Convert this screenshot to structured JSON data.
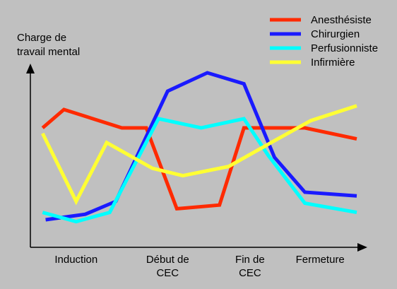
{
  "chart_data": {
    "type": "line",
    "title": "",
    "xlabel": "",
    "ylabel": [
      "Charge de",
      "travail mental"
    ],
    "grid": false,
    "legend_position": "top-right",
    "ylim": [
      0,
      10
    ],
    "x_ticks": [
      {
        "lines": [
          "Induction"
        ],
        "x": 1.5
      },
      {
        "lines": [
          "Début de",
          "CEC"
        ],
        "x": 4.5
      },
      {
        "lines": [
          "Fin de",
          "CEC"
        ],
        "x": 7.2
      },
      {
        "lines": [
          "Fermeture"
        ],
        "x": 9.5
      }
    ],
    "xlim": [
      0,
      11
    ],
    "series": [
      {
        "name": "Anesthésiste",
        "color": "#ff2a00",
        "points": [
          [
            0.4,
            6.5
          ],
          [
            1.1,
            7.5
          ],
          [
            3.0,
            6.5
          ],
          [
            3.8,
            6.5
          ],
          [
            4.8,
            2.1
          ],
          [
            6.2,
            2.3
          ],
          [
            7.0,
            6.5
          ],
          [
            9.0,
            6.5
          ],
          [
            10.7,
            5.9
          ]
        ]
      },
      {
        "name": "Chirurgien",
        "color": "#1a1aff",
        "points": [
          [
            0.5,
            1.5
          ],
          [
            1.8,
            1.8
          ],
          [
            2.8,
            2.5
          ],
          [
            4.5,
            8.5
          ],
          [
            5.8,
            9.5
          ],
          [
            7.0,
            8.9
          ],
          [
            8.0,
            4.9
          ],
          [
            9.0,
            3.0
          ],
          [
            10.7,
            2.8
          ]
        ]
      },
      {
        "name": "Perfusionniste",
        "color": "#00ffff",
        "points": [
          [
            0.4,
            1.9
          ],
          [
            1.5,
            1.4
          ],
          [
            2.6,
            1.9
          ],
          [
            4.2,
            7.0
          ],
          [
            5.6,
            6.5
          ],
          [
            7.0,
            7.0
          ],
          [
            7.8,
            5.0
          ],
          [
            9.0,
            2.4
          ],
          [
            10.7,
            1.9
          ]
        ]
      },
      {
        "name": "Infirmière",
        "color": "#ffff33",
        "points": [
          [
            0.4,
            6.2
          ],
          [
            1.5,
            2.5
          ],
          [
            2.5,
            5.7
          ],
          [
            4.0,
            4.3
          ],
          [
            5.0,
            3.9
          ],
          [
            6.5,
            4.4
          ],
          [
            8.0,
            5.8
          ],
          [
            9.2,
            6.9
          ],
          [
            10.7,
            7.7
          ]
        ]
      }
    ]
  }
}
